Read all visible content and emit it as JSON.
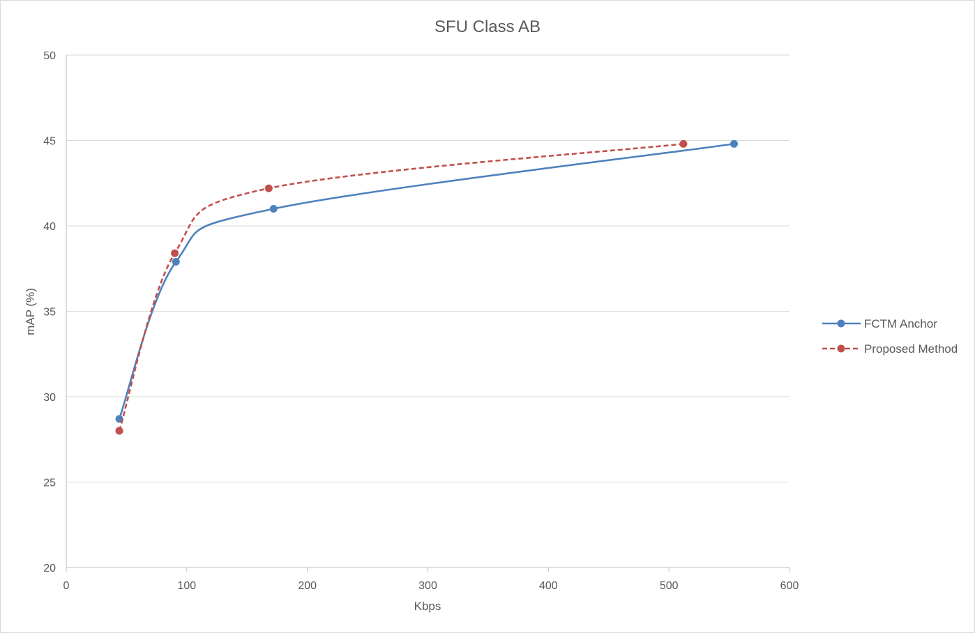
{
  "chart_data": {
    "type": "line",
    "title": "SFU Class AB",
    "xlabel": "Kbps",
    "ylabel": "mAP (%)",
    "xlim": [
      0,
      600
    ],
    "ylim": [
      20,
      50
    ],
    "xticks": [
      0,
      100,
      200,
      300,
      400,
      500,
      600
    ],
    "yticks": [
      20,
      25,
      30,
      35,
      40,
      45,
      50
    ],
    "grid": "horizontal",
    "legend_position": "right",
    "smooth": true,
    "series": [
      {
        "name": "FCTM Anchor",
        "color": "#4f81bd",
        "dash": "solid",
        "x": [
          44,
          91,
          172,
          554
        ],
        "y": [
          28.7,
          37.9,
          41.0,
          44.8
        ]
      },
      {
        "name": "Proposed Method",
        "color": "#c0504d",
        "dash": "dashed",
        "x": [
          44,
          90,
          168,
          512
        ],
        "y": [
          28.0,
          38.4,
          42.2,
          44.8
        ]
      }
    ]
  }
}
